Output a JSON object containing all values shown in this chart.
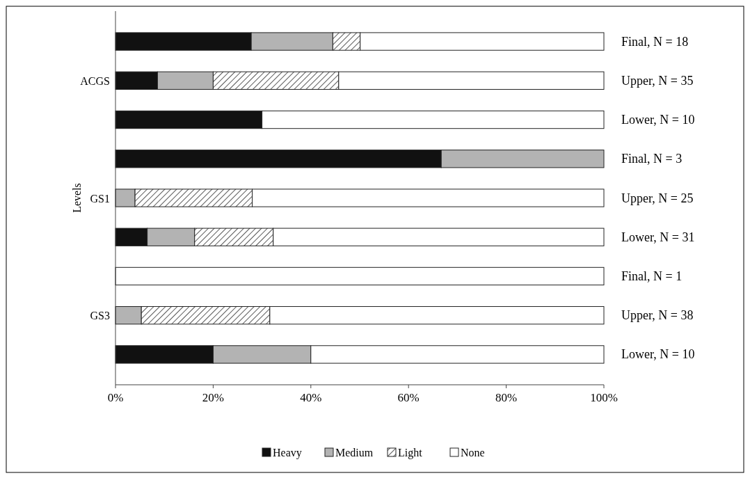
{
  "chart_data": {
    "type": "bar",
    "orientation": "horizontal",
    "stacked": true,
    "ylabel": "Levels",
    "categories": [
      "Final, N = 18",
      "Upper, N = 35",
      "Lower, N = 10",
      "Final, N = 3",
      "Upper, N = 25",
      "Lower, N = 31",
      "Final, N = 1",
      "Upper, N = 38",
      "Lower, N = 10"
    ],
    "series": [
      {
        "name": "Heavy",
        "color": "#111111",
        "values": [
          27.8,
          8.6,
          30,
          66.7,
          0,
          6.5,
          0,
          0,
          20
        ]
      },
      {
        "name": "Medium",
        "color": "#b3b3b3",
        "values": [
          16.7,
          11.4,
          0,
          33.3,
          4,
          9.7,
          0,
          5.3,
          20
        ]
      },
      {
        "name": "Light",
        "color": "#222222",
        "values": [
          5.6,
          25.7,
          0,
          0,
          24,
          16.1,
          0,
          26.3,
          0
        ]
      },
      {
        "name": "None",
        "color": "#ffffff",
        "values": [
          49.9,
          54.3,
          70,
          0,
          72,
          67.7,
          100,
          68.4,
          60
        ]
      }
    ],
    "xlim": [
      0,
      100
    ],
    "xticks": [
      {
        "value": 0,
        "label": "0%"
      },
      {
        "value": 20,
        "label": "20%"
      },
      {
        "value": 40,
        "label": "40%"
      },
      {
        "value": 60,
        "label": "60%"
      },
      {
        "value": 80,
        "label": "80%"
      },
      {
        "value": 100,
        "label": "100%"
      }
    ],
    "annotations": [
      "ACGS",
      "GS1",
      "GS3"
    ],
    "legend": "bottom",
    "grid": false
  }
}
